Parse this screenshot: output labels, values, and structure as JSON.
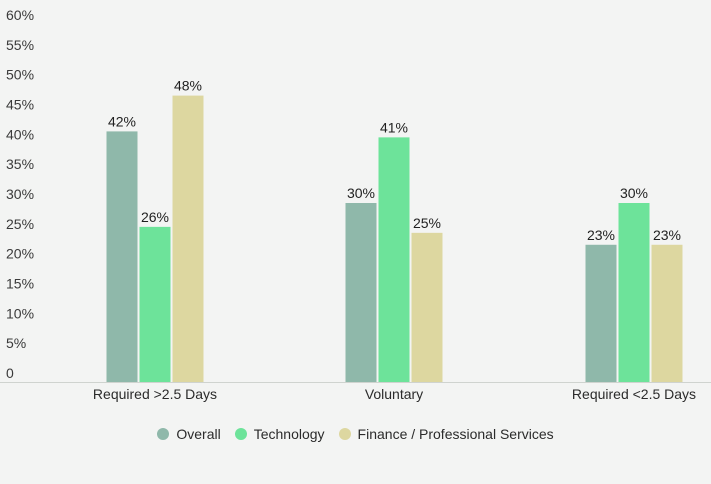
{
  "chart_data": {
    "type": "bar",
    "categories": [
      "Required >2.5 Days",
      "Voluntary",
      "Required <2.5 Days"
    ],
    "series": [
      {
        "name": "Overall",
        "values": [
          42,
          30,
          23
        ],
        "labels": [
          "42%",
          "30%",
          "23%"
        ],
        "color": "#8fb8aa"
      },
      {
        "name": "Technology",
        "values": [
          26,
          41,
          30
        ],
        "labels": [
          "26%",
          "41%",
          "30%"
        ],
        "color": "#6de39a"
      },
      {
        "name": "Finance / Professional Services",
        "values": [
          48,
          25,
          23
        ],
        "labels": [
          "48%",
          "25%",
          "23%"
        ],
        "color": "#ddd7a0"
      }
    ],
    "y_ticks": [
      "0",
      "5%",
      "10%",
      "15%",
      "20%",
      "25%",
      "30%",
      "35%",
      "40%",
      "45%",
      "50%",
      "55%",
      "60%"
    ],
    "ylim": [
      0,
      60
    ],
    "grid": false,
    "legend_position": "bottom-center"
  }
}
